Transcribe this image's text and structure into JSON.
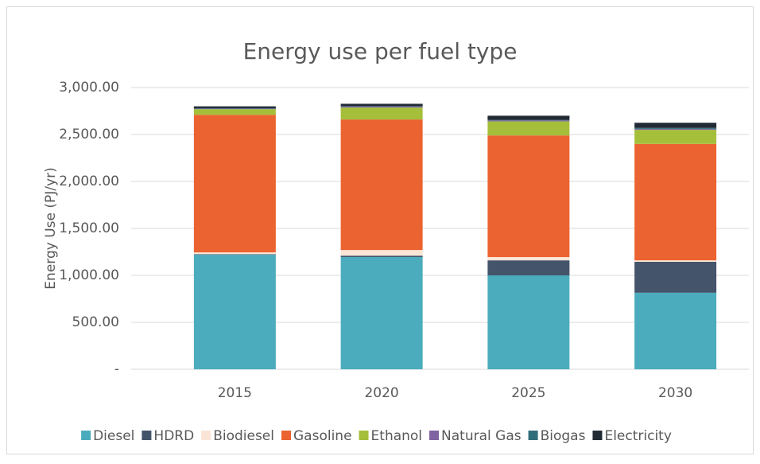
{
  "chart_data": {
    "type": "stacked_bar",
    "title": "Energy use per fuel type",
    "y_label": "Energy Use (PJ/yr)",
    "categories": [
      "2015",
      "2020",
      "2025",
      "2030"
    ],
    "series": [
      {
        "name": "Diesel",
        "color": "#4bacbd",
        "values": [
          1220,
          1195,
          1000,
          815
        ]
      },
      {
        "name": "HDRD",
        "color": "#44546a",
        "values": [
          5,
          15,
          160,
          330
        ]
      },
      {
        "name": "Biodiesel",
        "color": "#fbe5d6",
        "values": [
          20,
          60,
          35,
          15
        ]
      },
      {
        "name": "Gasoline",
        "color": "#eb6330",
        "values": [
          1465,
          1390,
          1295,
          1240
        ]
      },
      {
        "name": "Ethanol",
        "color": "#a5bf3a",
        "values": [
          60,
          127,
          150,
          150
        ]
      },
      {
        "name": "Natural Gas",
        "color": "#8064a2",
        "values": [
          5,
          10,
          10,
          10
        ]
      },
      {
        "name": "Biogas",
        "color": "#2f6f7a",
        "values": [
          5,
          5,
          5,
          10
        ]
      },
      {
        "name": "Electricity",
        "color": "#222a35",
        "values": [
          20,
          25,
          45,
          55
        ]
      }
    ],
    "ylim": [
      0,
      3000
    ],
    "yticks": [
      {
        "value": 0,
        "label": "-"
      },
      {
        "value": 500,
        "label": "500.00"
      },
      {
        "value": 1000,
        "label": "1,000.00"
      },
      {
        "value": 1500,
        "label": "1,500.00"
      },
      {
        "value": 2000,
        "label": "2,000.00"
      },
      {
        "value": 2500,
        "label": "2,500.00"
      },
      {
        "value": 3000,
        "label": "3,000.00"
      }
    ],
    "grid": true,
    "legend": "bottom"
  }
}
